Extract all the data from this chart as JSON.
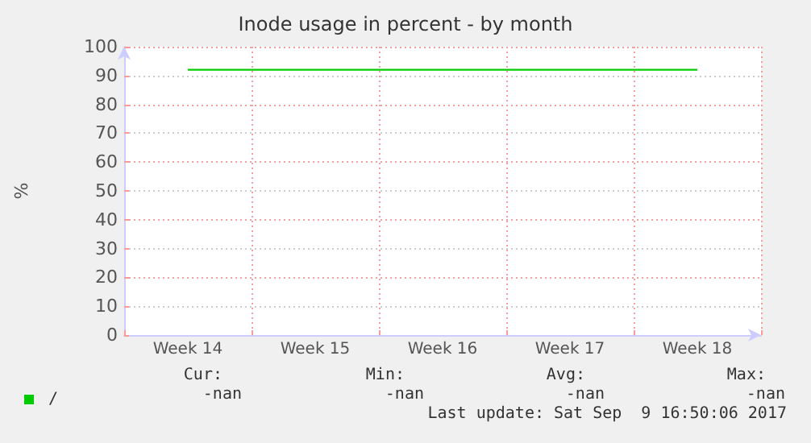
{
  "chart_data": {
    "type": "line",
    "title": "Inode usage in percent - by month",
    "ylabel": "%",
    "categories": [
      "Week 14",
      "Week 15",
      "Week 16",
      "Week 17",
      "Week 18"
    ],
    "series": [
      {
        "name": "/",
        "color": "#00cc00",
        "values": [
          92,
          92,
          92,
          92,
          92
        ]
      }
    ],
    "ylim": [
      0,
      100
    ],
    "yticks": [
      0,
      10,
      20,
      30,
      40,
      50,
      60,
      70,
      80,
      90,
      100
    ],
    "grid": true,
    "legend": "bottom left",
    "marker": "none",
    "line_style": "solid",
    "annotations": [
      "Cur:",
      "Min:",
      "Avg:",
      "Max:",
      "-nan",
      "-nan",
      "-nan",
      "-nan",
      "Last update: Sat Sep  9 16:50:06 2017"
    ]
  }
}
